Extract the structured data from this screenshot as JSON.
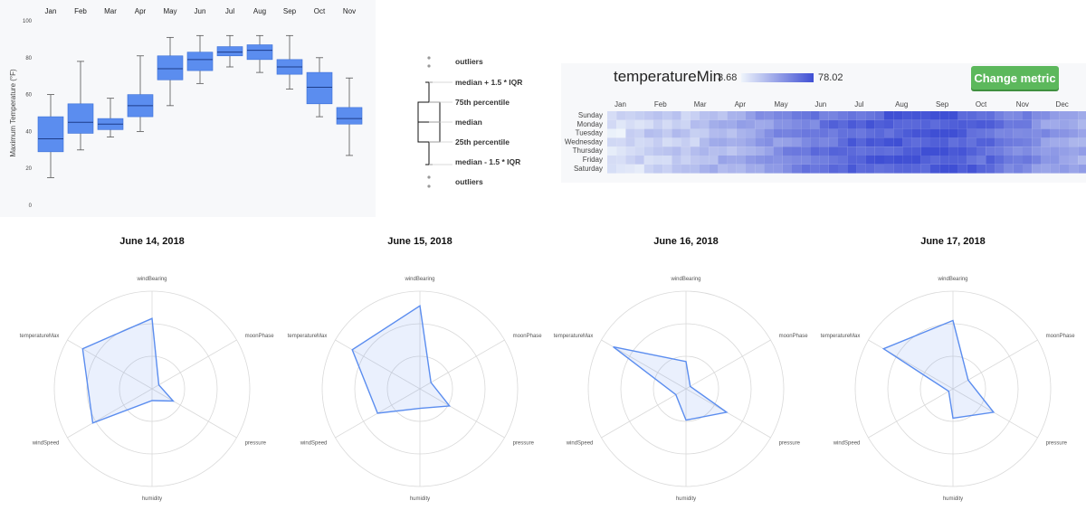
{
  "boxplot": {
    "ylabel": "Maximum Temperature (°F)",
    "yticks": [
      0,
      20,
      40,
      60,
      80,
      100
    ],
    "months": [
      "Jan",
      "Feb",
      "Mar",
      "Apr",
      "May",
      "Jun",
      "Jul",
      "Aug",
      "Sep",
      "Oct",
      "Nov"
    ],
    "color": "#5b8def"
  },
  "legend": {
    "labels": [
      "outliers",
      "median + 1.5 * IQR",
      "75th percentile",
      "median",
      "25th percentile",
      "median - 1.5 * IQR",
      "outliers"
    ]
  },
  "heatmap": {
    "title": "temperatureMin",
    "min_label": "3.68",
    "max_label": "78.02",
    "button_label": "Change metric",
    "months": [
      "Jan",
      "Feb",
      "Mar",
      "Apr",
      "May",
      "Jun",
      "Jul",
      "Aug",
      "Sep",
      "Oct",
      "Nov",
      "Dec"
    ],
    "days": [
      "Sunday",
      "Monday",
      "Tuesday",
      "Wednesday",
      "Thursday",
      "Friday",
      "Saturday"
    ],
    "low_color": "#eef4fb",
    "high_color": "#3f4fd4"
  },
  "radar": {
    "axes": [
      "windBearing",
      "moonPhase",
      "pressure",
      "humidity",
      "windSpeed",
      "temperatureMax"
    ],
    "titles": [
      "June 14, 2018",
      "June 15, 2018",
      "June 16, 2018",
      "June 17, 2018"
    ]
  },
  "chart_data": [
    {
      "type": "boxplot",
      "ylabel": "Maximum Temperature (°F)",
      "ylim": [
        0,
        100
      ],
      "categories": [
        "Jan",
        "Feb",
        "Mar",
        "Apr",
        "May",
        "Jun",
        "Jul",
        "Aug",
        "Sep",
        "Oct",
        "Nov"
      ],
      "boxes": [
        {
          "low": 15,
          "q1": 29,
          "median": 36,
          "q3": 48,
          "high": 60
        },
        {
          "low": 30,
          "q1": 39,
          "median": 45,
          "q3": 55,
          "high": 78
        },
        {
          "low": 37,
          "q1": 41,
          "median": 44,
          "q3": 47,
          "high": 58
        },
        {
          "low": 40,
          "q1": 48,
          "median": 54,
          "q3": 60,
          "high": 81
        },
        {
          "low": 54,
          "q1": 68,
          "median": 74,
          "q3": 81,
          "high": 91
        },
        {
          "low": 66,
          "q1": 73,
          "median": 79,
          "q3": 83,
          "high": 92
        },
        {
          "low": 75,
          "q1": 81,
          "median": 83,
          "q3": 86,
          "high": 92
        },
        {
          "low": 72,
          "q1": 79,
          "median": 84,
          "q3": 87,
          "high": 92
        },
        {
          "low": 63,
          "q1": 71,
          "median": 75,
          "q3": 79,
          "high": 92
        },
        {
          "low": 48,
          "q1": 55,
          "median": 64,
          "q3": 72,
          "high": 80
        },
        {
          "low": 27,
          "q1": 44,
          "median": 47,
          "q3": 53,
          "high": 69
        }
      ]
    },
    {
      "type": "heatmap",
      "title": "temperatureMin",
      "value_range": [
        3.68,
        78.02
      ],
      "rows": [
        "Sunday",
        "Monday",
        "Tuesday",
        "Wednesday",
        "Thursday",
        "Friday",
        "Saturday"
      ],
      "weeks": 53,
      "seasonal_profile": [
        14,
        12,
        18,
        16,
        20,
        22,
        17,
        25,
        22,
        24,
        27,
        30,
        32,
        33,
        35,
        38,
        42,
        45,
        47,
        50,
        52,
        55,
        58,
        60,
        62,
        64,
        66,
        67,
        68,
        69,
        70,
        71,
        72,
        72,
        73,
        73,
        72,
        71,
        70,
        68,
        66,
        64,
        61,
        58,
        55,
        52,
        48,
        45,
        42,
        40,
        38,
        36,
        35
      ]
    },
    {
      "type": "radar",
      "title": "June 14, 2018",
      "axes": [
        "windBearing",
        "moonPhase",
        "pressure",
        "humidity",
        "windSpeed",
        "temperatureMax"
      ],
      "values": [
        0.72,
        0.08,
        0.25,
        0.12,
        0.7,
        0.82
      ]
    },
    {
      "type": "radar",
      "title": "June 15, 2018",
      "axes": [
        "windBearing",
        "moonPhase",
        "pressure",
        "humidity",
        "windSpeed",
        "temperatureMax"
      ],
      "values": [
        0.85,
        0.13,
        0.35,
        0.2,
        0.5,
        0.8
      ]
    },
    {
      "type": "radar",
      "title": "June 16, 2018",
      "axes": [
        "windBearing",
        "moonPhase",
        "pressure",
        "humidity",
        "windSpeed",
        "temperatureMax"
      ],
      "values": [
        0.28,
        0.05,
        0.48,
        0.32,
        0.12,
        0.86
      ]
    },
    {
      "type": "radar",
      "title": "June 17, 2018",
      "axes": [
        "windBearing",
        "moonPhase",
        "pressure",
        "humidity",
        "windSpeed",
        "temperatureMax"
      ],
      "values": [
        0.7,
        0.18,
        0.48,
        0.3,
        0.05,
        0.82
      ]
    }
  ]
}
